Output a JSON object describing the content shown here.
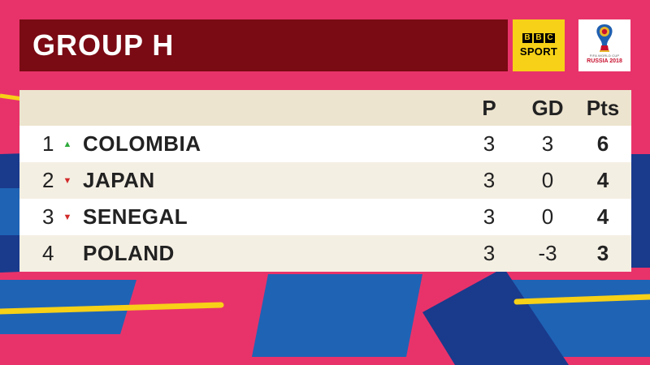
{
  "header": {
    "title": "GROUP H"
  },
  "branding": {
    "bbc_letters": [
      "B",
      "B",
      "C"
    ],
    "sport_label": "SPORT",
    "worldcup_small": "FIFA WORLD CUP",
    "worldcup_text": "RUSSIA 2018"
  },
  "table": {
    "columns": {
      "played": "P",
      "goal_difference": "GD",
      "points": "Pts"
    },
    "rows": [
      {
        "position": "1",
        "movement": "up",
        "movement_icon": "▲",
        "team": "COLOMBIA",
        "played": "3",
        "goal_difference": "3",
        "points": "6"
      },
      {
        "position": "2",
        "movement": "down",
        "movement_icon": "▼",
        "team": "JAPAN",
        "played": "3",
        "goal_difference": "0",
        "points": "4"
      },
      {
        "position": "3",
        "movement": "down",
        "movement_icon": "▼",
        "team": "SENEGAL",
        "played": "3",
        "goal_difference": "0",
        "points": "4"
      },
      {
        "position": "4",
        "movement": "none",
        "movement_icon": "",
        "team": "POLAND",
        "played": "3",
        "goal_difference": "-3",
        "points": "3"
      }
    ]
  },
  "colors": {
    "background": "#e8336a",
    "header_bar": "#7a0a14",
    "bbc_badge": "#f7d117",
    "accent_blue": "#1f63b5",
    "accent_navy": "#1a3a8c",
    "accent_yellow": "#f7d117",
    "arrow_up": "#2eaa3c",
    "arrow_down": "#d12a2a"
  }
}
